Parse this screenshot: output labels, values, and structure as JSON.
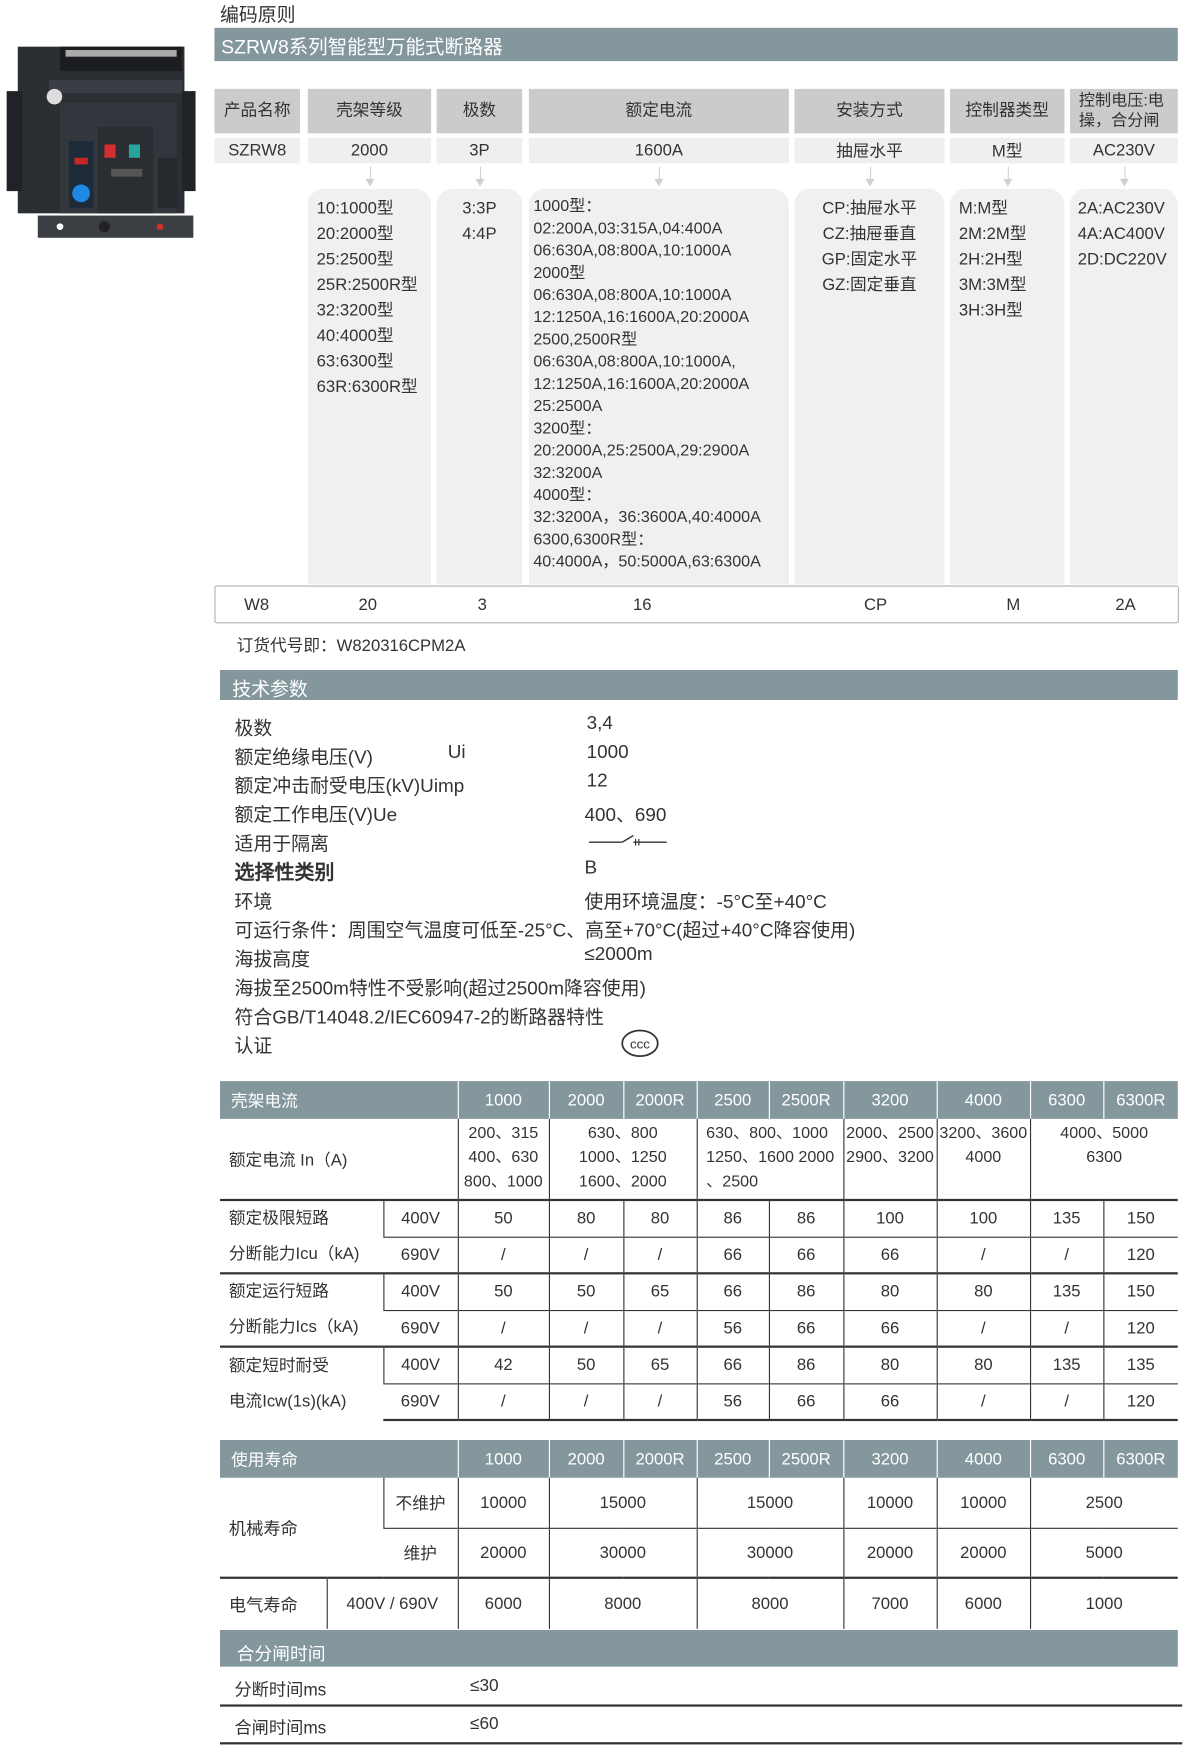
{
  "section_title": "编码原则",
  "banner_title": "SZRW8系列智能型万能式断路器",
  "product_image": {
    "name": "circuit-breaker-photo",
    "accent_colors": [
      "#d32f2f",
      "#1e88e5",
      "#26a69a"
    ]
  },
  "coding": {
    "columns": [
      {
        "header": "产品名称",
        "value": "SZRW8",
        "options": []
      },
      {
        "header": "壳架等级",
        "value": "2000",
        "options": [
          "10:1000型",
          "20:2000型",
          "25:2500型",
          "25R:2500R型",
          "32:3200型",
          "40:4000型",
          "63:6300型",
          "63R:6300R型"
        ]
      },
      {
        "header": "极数",
        "value": "3P",
        "options": [
          "3:3P",
          "4:4P"
        ]
      },
      {
        "header": "额定电流",
        "value": "1600A",
        "options": [
          "1000型：",
          "02:200A,03:315A,04:400A",
          "06:630A,08:800A,10:1000A",
          "2000型",
          "06:630A,08:800A,10:1000A",
          "12:1250A,16:1600A,20:2000A",
          "2500,2500R型",
          "06:630A,08:800A,10:1000A,",
          "12:1250A,16:1600A,20:2000A",
          "25:2500A",
          "3200型：",
          "20:2000A,25:2500A,29:2900A",
          "32:3200A",
          "4000型：",
          "32:3200A，36:3600A,40:4000A",
          "6300,6300R型：",
          "40:4000A，50:5000A,63:6300A"
        ]
      },
      {
        "header": "安装方式",
        "value": "抽屉水平",
        "options": [
          "CP:抽屉水平",
          "CZ:抽屉垂直",
          "GP:固定水平",
          "GZ:固定垂直"
        ]
      },
      {
        "header": "控制器类型",
        "value": "M型",
        "options": [
          "M:M型",
          "2M:2M型",
          "2H:2H型",
          "3M:3M型",
          "3H:3H型"
        ]
      },
      {
        "header": "控制电压:电操，合分闸",
        "value": "AC230V",
        "options": [
          "2A:AC230V",
          "4A:AC400V",
          "2D:DC220V"
        ]
      }
    ],
    "code_parts": [
      "W8",
      "20",
      "3",
      "16",
      "CP",
      "M",
      "2A"
    ],
    "order_code_label": "订货代号即：",
    "order_code": "W820316CPM2A"
  },
  "tech": {
    "title": "技术参数",
    "params": [
      {
        "label": "极数",
        "value": "3,4"
      },
      {
        "label": "额定绝缘电压(V)",
        "symbol": "Ui",
        "value": "1000"
      },
      {
        "label": "额定冲击耐受电压(kV)Uimp",
        "value": "12"
      },
      {
        "label": "额定工作电压(V)Ue",
        "value": "400、690"
      },
      {
        "label": "适用于隔离",
        "value_icon": "isolating-switch-symbol"
      },
      {
        "label": "选择性类别",
        "value": "B"
      },
      {
        "label": "环境",
        "value": "使用环境温度：-5°C至+40°C"
      },
      {
        "label": "可运行条件：周围空气温度可低至-25°C、高至+70°C(超过+40°C降容使用)"
      },
      {
        "label": "海拔高度",
        "value": "≤2000m"
      },
      {
        "label": "海拔至2500m特性不受影响(超过2500m降容使用)"
      },
      {
        "label": "符合GB/T14048.2/IEC60947-2的断路器特性"
      },
      {
        "label": "认证",
        "value_icon": "ccc-certification-mark"
      }
    ]
  },
  "frame_table": {
    "header_label": "壳架电流",
    "frames": [
      "1000",
      "2000",
      "2000R",
      "2500",
      "2500R",
      "3200",
      "4000",
      "6300",
      "6300R"
    ],
    "rated_current_label": "额定电流 In（A)",
    "rated_current": [
      "200、315\n400、630\n800、1000",
      "630、800\n1000、1250\n1600、2000",
      "630、800、1000\n1250、1600 2000\n、2500",
      "2000、2500\n2900、3200",
      "3200、3600\n4000",
      "4000、5000\n6300"
    ],
    "groups": [
      {
        "label1": "额定极限短路",
        "label2": "分断能力Icu（kA)",
        "rows": [
          {
            "voltage": "400V",
            "values": [
              "50",
              "80",
              "80",
              "86",
              "86",
              "100",
              "100",
              "135",
              "150"
            ]
          },
          {
            "voltage": "690V",
            "values": [
              "/",
              "/",
              "/",
              "66",
              "66",
              "66",
              "/",
              "/",
              "120"
            ]
          }
        ]
      },
      {
        "label1": "额定运行短路",
        "label2": "分断能力Ics（kA)",
        "rows": [
          {
            "voltage": "400V",
            "values": [
              "50",
              "50",
              "65",
              "66",
              "86",
              "80",
              "80",
              "135",
              "150"
            ]
          },
          {
            "voltage": "690V",
            "values": [
              "/",
              "/",
              "/",
              "56",
              "66",
              "66",
              "/",
              "/",
              "120"
            ]
          }
        ]
      },
      {
        "label1": "额定短时耐受",
        "label2": "电流Icw(1s)(kA)",
        "rows": [
          {
            "voltage": "400V",
            "values": [
              "42",
              "50",
              "65",
              "66",
              "86",
              "80",
              "80",
              "135",
              "135"
            ]
          },
          {
            "voltage": "690V",
            "values": [
              "/",
              "/",
              "/",
              "56",
              "66",
              "66",
              "/",
              "/",
              "120"
            ]
          }
        ]
      }
    ]
  },
  "life_table": {
    "header_label": "使用寿命",
    "frames": [
      "1000",
      "2000",
      "2000R",
      "2500",
      "2500R",
      "3200",
      "4000",
      "6300",
      "6300R"
    ],
    "mech_label": "机械寿命",
    "no_maint_label": "不维护",
    "no_maint": [
      "10000",
      "15000",
      "15000",
      "10000",
      "10000",
      "2500"
    ],
    "maint_label": "维护",
    "maint": [
      "20000",
      "30000",
      "30000",
      "20000",
      "20000",
      "5000"
    ],
    "elec_label": "电气寿命",
    "elec_voltage": "400V / 690V",
    "elec": [
      "6000",
      "8000",
      "8000",
      "7000",
      "6000",
      "1000"
    ]
  },
  "timing": {
    "title": "合分闸时间",
    "rows": [
      {
        "label": "分断时间ms",
        "value": "≤30"
      },
      {
        "label": "合闸时间ms",
        "value": "≤60"
      }
    ]
  },
  "colors": {
    "banner": "#84979c",
    "header_cell": "#cbcbcb",
    "value_cell": "#efefef",
    "option_box": "#f0f0f0",
    "text": "#333333"
  }
}
